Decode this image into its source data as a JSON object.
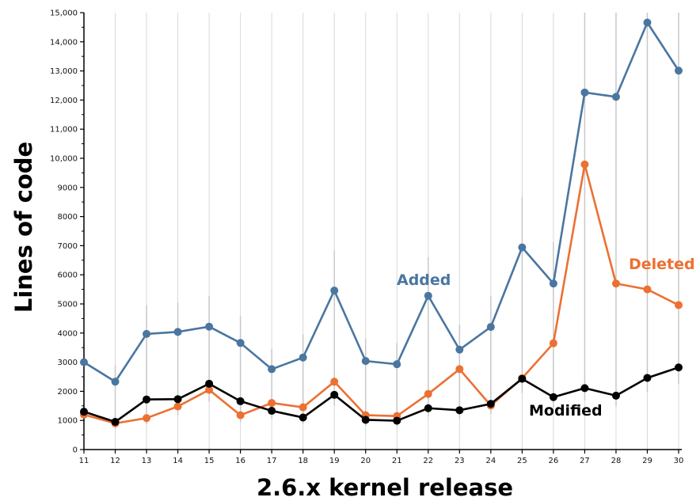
{
  "chart_data": {
    "type": "line",
    "xlabel": "2.6.x kernel release",
    "ylabel": "Lines of code",
    "categories": [
      "11",
      "12",
      "13",
      "14",
      "15",
      "16",
      "17",
      "18",
      "19",
      "20",
      "21",
      "22",
      "23",
      "24",
      "25",
      "26",
      "27",
      "28",
      "29",
      "30"
    ],
    "ylim": [
      0,
      15000
    ],
    "y_ticks": [
      0,
      1000,
      2000,
      3000,
      4000,
      5000,
      6000,
      7000,
      8000,
      9000,
      10000,
      11000,
      12000,
      13000,
      14000,
      15000
    ],
    "y_tick_labels": [
      "0",
      "1000",
      "2000",
      "3000",
      "4000",
      "5000",
      "6000",
      "7000",
      "8000",
      "9000",
      "10,000",
      "11,000",
      "12,000",
      "13,000",
      "14,000",
      "15,000"
    ],
    "grid": "vertical",
    "legend": "inline labels",
    "series": [
      {
        "name": "Added",
        "color": "#4a76a0",
        "values": [
          3000,
          2330,
          3970,
          4040,
          4220,
          3660,
          2760,
          3160,
          5460,
          3040,
          2930,
          5280,
          3430,
          4210,
          6940,
          5700,
          12260,
          12110,
          14660,
          13010
        ]
      },
      {
        "name": "Deleted",
        "color": "#ec7032",
        "values": [
          1200,
          900,
          1080,
          1480,
          2050,
          1180,
          1600,
          1450,
          2330,
          1180,
          1150,
          1910,
          2760,
          1510,
          2450,
          3650,
          9790,
          5700,
          5500,
          4960
        ]
      },
      {
        "name": "Modified",
        "color": "#000000",
        "values": [
          1300,
          950,
          1720,
          1730,
          2260,
          1660,
          1330,
          1100,
          1880,
          1020,
          990,
          1420,
          1350,
          1570,
          2430,
          1800,
          2110,
          1850,
          2460,
          2820
        ]
      }
    ]
  }
}
